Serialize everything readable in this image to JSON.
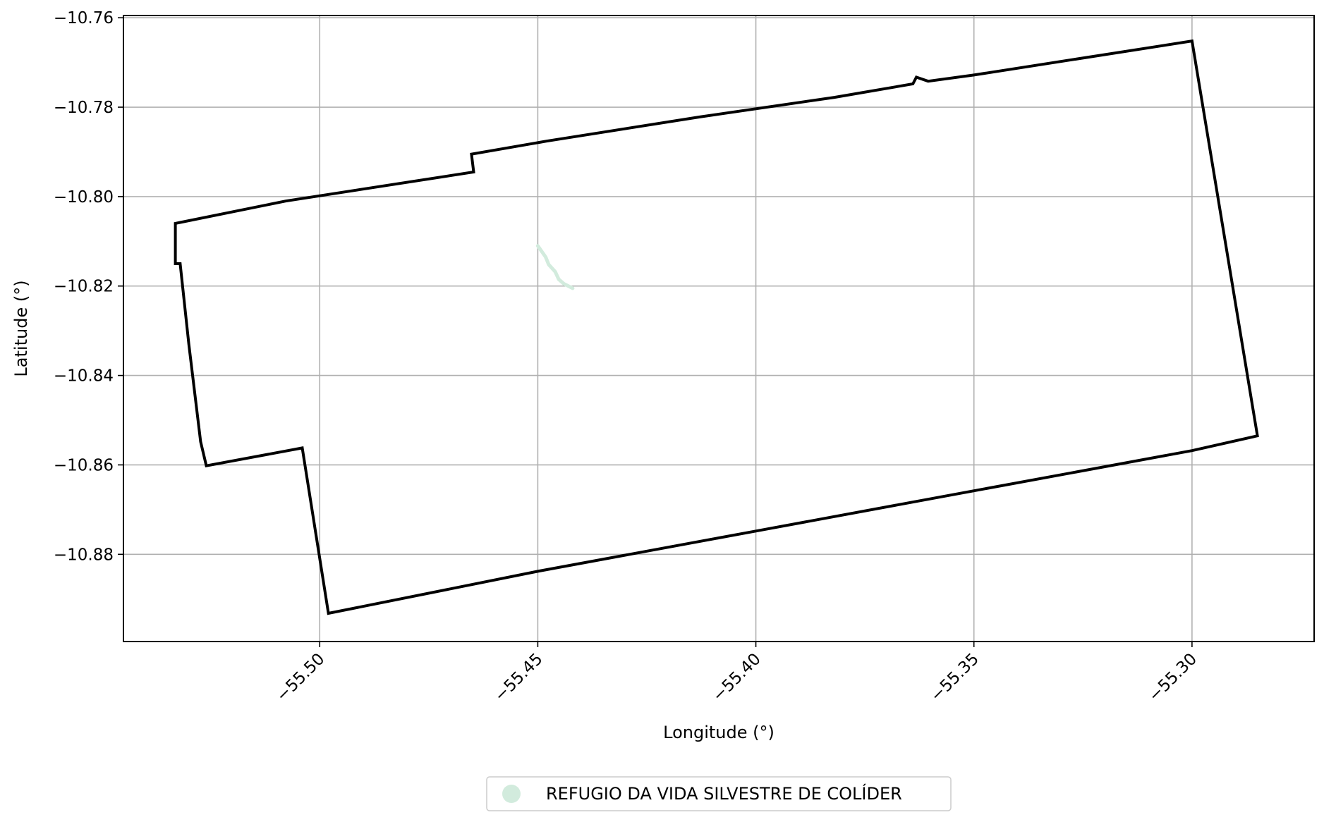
{
  "chart_data": {
    "type": "map",
    "title": "",
    "xlabel": "Longitude (°)",
    "ylabel": "Latitude (°)",
    "xlim": [
      -55.545,
      -55.272
    ],
    "ylim": [
      -10.8995,
      -10.7595
    ],
    "grid": true,
    "x_ticks": [
      {
        "value": -55.5,
        "label": "−55.50"
      },
      {
        "value": -55.45,
        "label": "−55.45"
      },
      {
        "value": -55.4,
        "label": "−55.40"
      },
      {
        "value": -55.35,
        "label": "−55.35"
      },
      {
        "value": -55.3,
        "label": "−55.30"
      }
    ],
    "y_ticks": [
      {
        "value": -10.76,
        "label": "−10.76"
      },
      {
        "value": -10.78,
        "label": "−10.78"
      },
      {
        "value": -10.8,
        "label": "−10.80"
      },
      {
        "value": -10.82,
        "label": "−10.82"
      },
      {
        "value": -10.84,
        "label": "−10.84"
      },
      {
        "value": -10.86,
        "label": "−10.86"
      },
      {
        "value": -10.88,
        "label": "−10.88"
      }
    ],
    "boundary": {
      "color": "#000000",
      "points": [
        [
          -55.5331,
          -10.806
        ],
        [
          -55.5078,
          -10.801
        ],
        [
          -55.4647,
          -10.7945
        ],
        [
          -55.4652,
          -10.7905
        ],
        [
          -55.448,
          -10.7876
        ],
        [
          -55.413,
          -10.7822
        ],
        [
          -55.382,
          -10.7778
        ],
        [
          -55.364,
          -10.7748
        ],
        [
          -55.3632,
          -10.7733
        ],
        [
          -55.3605,
          -10.7742
        ],
        [
          -55.35,
          -10.7728
        ],
        [
          -55.3,
          -10.7652
        ],
        [
          -55.285,
          -10.8535
        ],
        [
          -55.3,
          -10.8568
        ],
        [
          -55.35,
          -10.8658
        ],
        [
          -55.4,
          -10.8748
        ],
        [
          -55.45,
          -10.8838
        ],
        [
          -55.498,
          -10.8932
        ],
        [
          -55.504,
          -10.8562
        ],
        [
          -55.526,
          -10.8602
        ],
        [
          -55.5273,
          -10.8548
        ],
        [
          -55.53,
          -10.833
        ],
        [
          -55.532,
          -10.815
        ],
        [
          -55.5331,
          -10.815
        ]
      ]
    },
    "series": [
      {
        "name": "REFUGIO DA VIDA SILVESTRE DE COLÍDER",
        "color": "#d2ebdd",
        "points": [
          [
            -55.45,
            -10.811
          ],
          [
            -55.4482,
            -10.8135
          ],
          [
            -55.4475,
            -10.8152
          ],
          [
            -55.446,
            -10.8168
          ],
          [
            -55.4452,
            -10.8185
          ],
          [
            -55.444,
            -10.8195
          ],
          [
            -55.442,
            -10.8205
          ]
        ]
      }
    ],
    "legend": {
      "position": "bottom-center",
      "label": "REFUGIO DA VIDA SILVESTRE DE COLÍDER"
    }
  }
}
